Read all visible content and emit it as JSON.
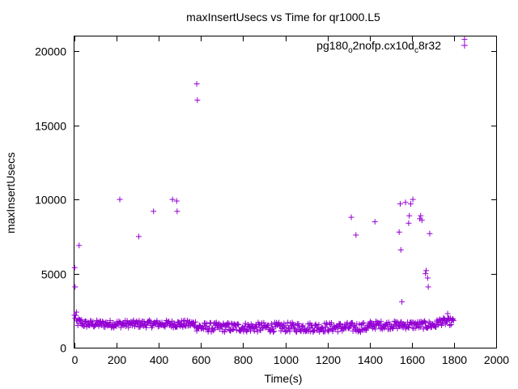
{
  "chart_data": {
    "type": "scatter",
    "title": "maxInsertUsecs vs Time for qr1000.L5",
    "xlabel": "Time(s)",
    "ylabel": "maxInsertUsecs",
    "xlim": [
      0,
      2000
    ],
    "ylim": [
      0,
      21000
    ],
    "x_ticks": [
      0,
      200,
      400,
      600,
      800,
      1000,
      1200,
      1400,
      1600,
      1800,
      2000
    ],
    "y_ticks": [
      0,
      5000,
      10000,
      15000,
      20000
    ],
    "grid": false,
    "legend_position": "top-right",
    "marker": "+",
    "series": [
      {
        "name_main": "pg180",
        "name_sub1": "o",
        "name_mid": "2nofp.cx10d",
        "name_sub2": "c",
        "name_end": "8r32",
        "color": "#9400d3",
        "outliers": [
          [
            1,
            5400
          ],
          [
            3,
            4100
          ],
          [
            22,
            6900
          ],
          [
            215,
            10000
          ],
          [
            305,
            7500
          ],
          [
            375,
            9200
          ],
          [
            465,
            10000
          ],
          [
            485,
            9900
          ],
          [
            487,
            9200
          ],
          [
            580,
            17800
          ],
          [
            583,
            16700
          ],
          [
            1313,
            8800
          ],
          [
            1335,
            7600
          ],
          [
            1425,
            8500
          ],
          [
            1540,
            7800
          ],
          [
            1545,
            9700
          ],
          [
            1548,
            6600
          ],
          [
            1553,
            3100
          ],
          [
            1570,
            9800
          ],
          [
            1585,
            8400
          ],
          [
            1588,
            8900
          ],
          [
            1595,
            9700
          ],
          [
            1605,
            10000
          ],
          [
            1638,
            8700
          ],
          [
            1642,
            8900
          ],
          [
            1648,
            8600
          ],
          [
            1665,
            5000
          ],
          [
            1668,
            5200
          ],
          [
            1675,
            4700
          ],
          [
            1678,
            4100
          ],
          [
            1685,
            7700
          ],
          [
            1770,
            2300
          ],
          [
            1850,
            20800
          ]
        ],
        "bands": [
          {
            "from": 0,
            "to": 10,
            "low": 1800,
            "high": 2400
          },
          {
            "from": 10,
            "to": 40,
            "low": 1400,
            "high": 2000
          },
          {
            "from": 40,
            "to": 580,
            "low": 1350,
            "high": 1850
          },
          {
            "from": 580,
            "to": 1400,
            "low": 1050,
            "high": 1700
          },
          {
            "from": 1400,
            "to": 1720,
            "low": 1250,
            "high": 1800
          },
          {
            "from": 1720,
            "to": 1800,
            "low": 1500,
            "high": 2000
          }
        ]
      }
    ]
  }
}
